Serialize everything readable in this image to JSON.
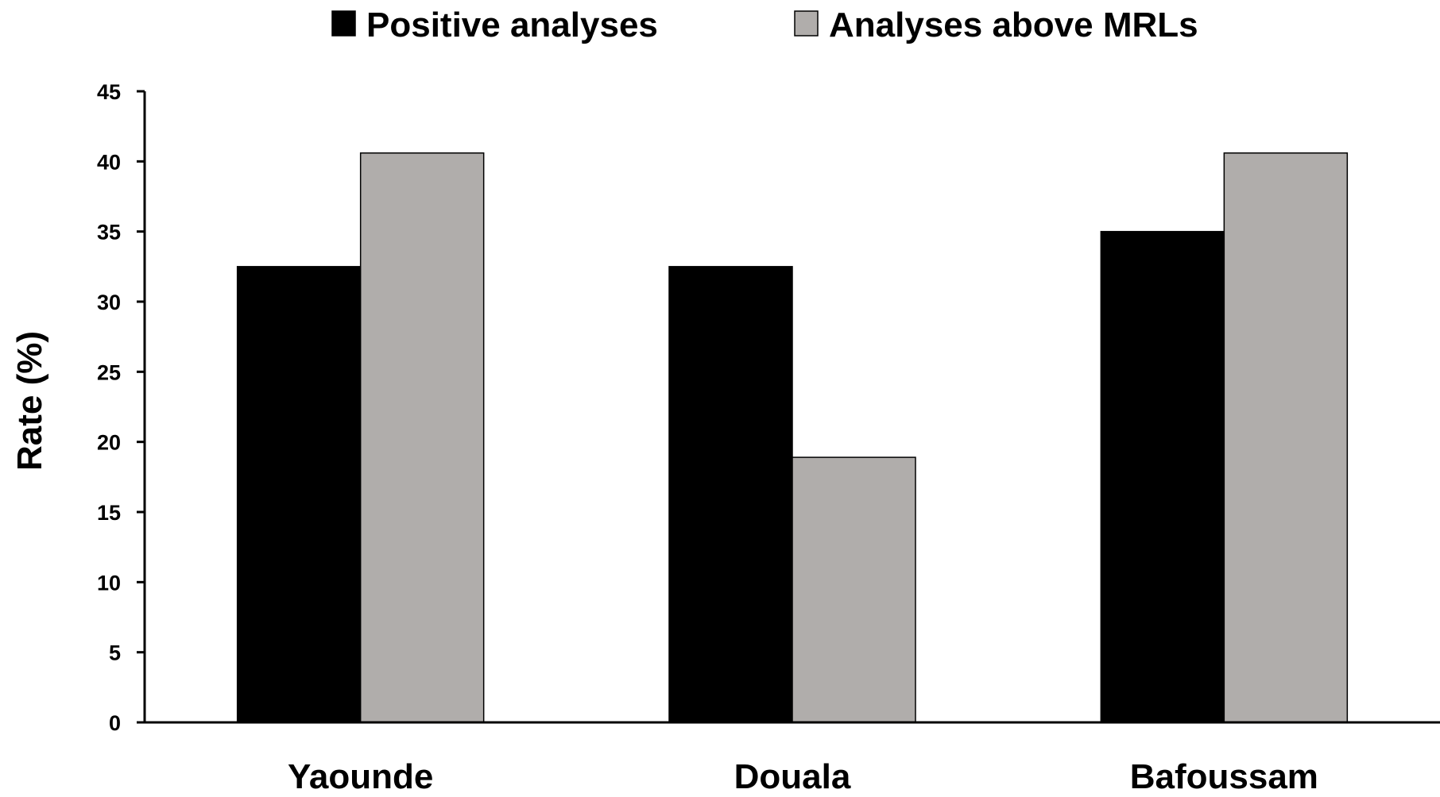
{
  "chart_data": {
    "type": "bar",
    "categories": [
      "Yaounde",
      "Douala",
      "Bafoussam"
    ],
    "series": [
      {
        "name": "Positive analyses",
        "values": [
          32.5,
          32.5,
          35.0
        ],
        "color": "#000000"
      },
      {
        "name": "Analyses above MRLs",
        "values": [
          40.6,
          18.9,
          40.6
        ],
        "color": "#b0adab"
      }
    ],
    "title": "",
    "xlabel": "",
    "ylabel": "Rate (%)",
    "ylim": [
      0,
      45
    ],
    "yticks": [
      0,
      5,
      10,
      15,
      20,
      25,
      30,
      35,
      40,
      45
    ],
    "grid": false,
    "legend_position": "top"
  }
}
